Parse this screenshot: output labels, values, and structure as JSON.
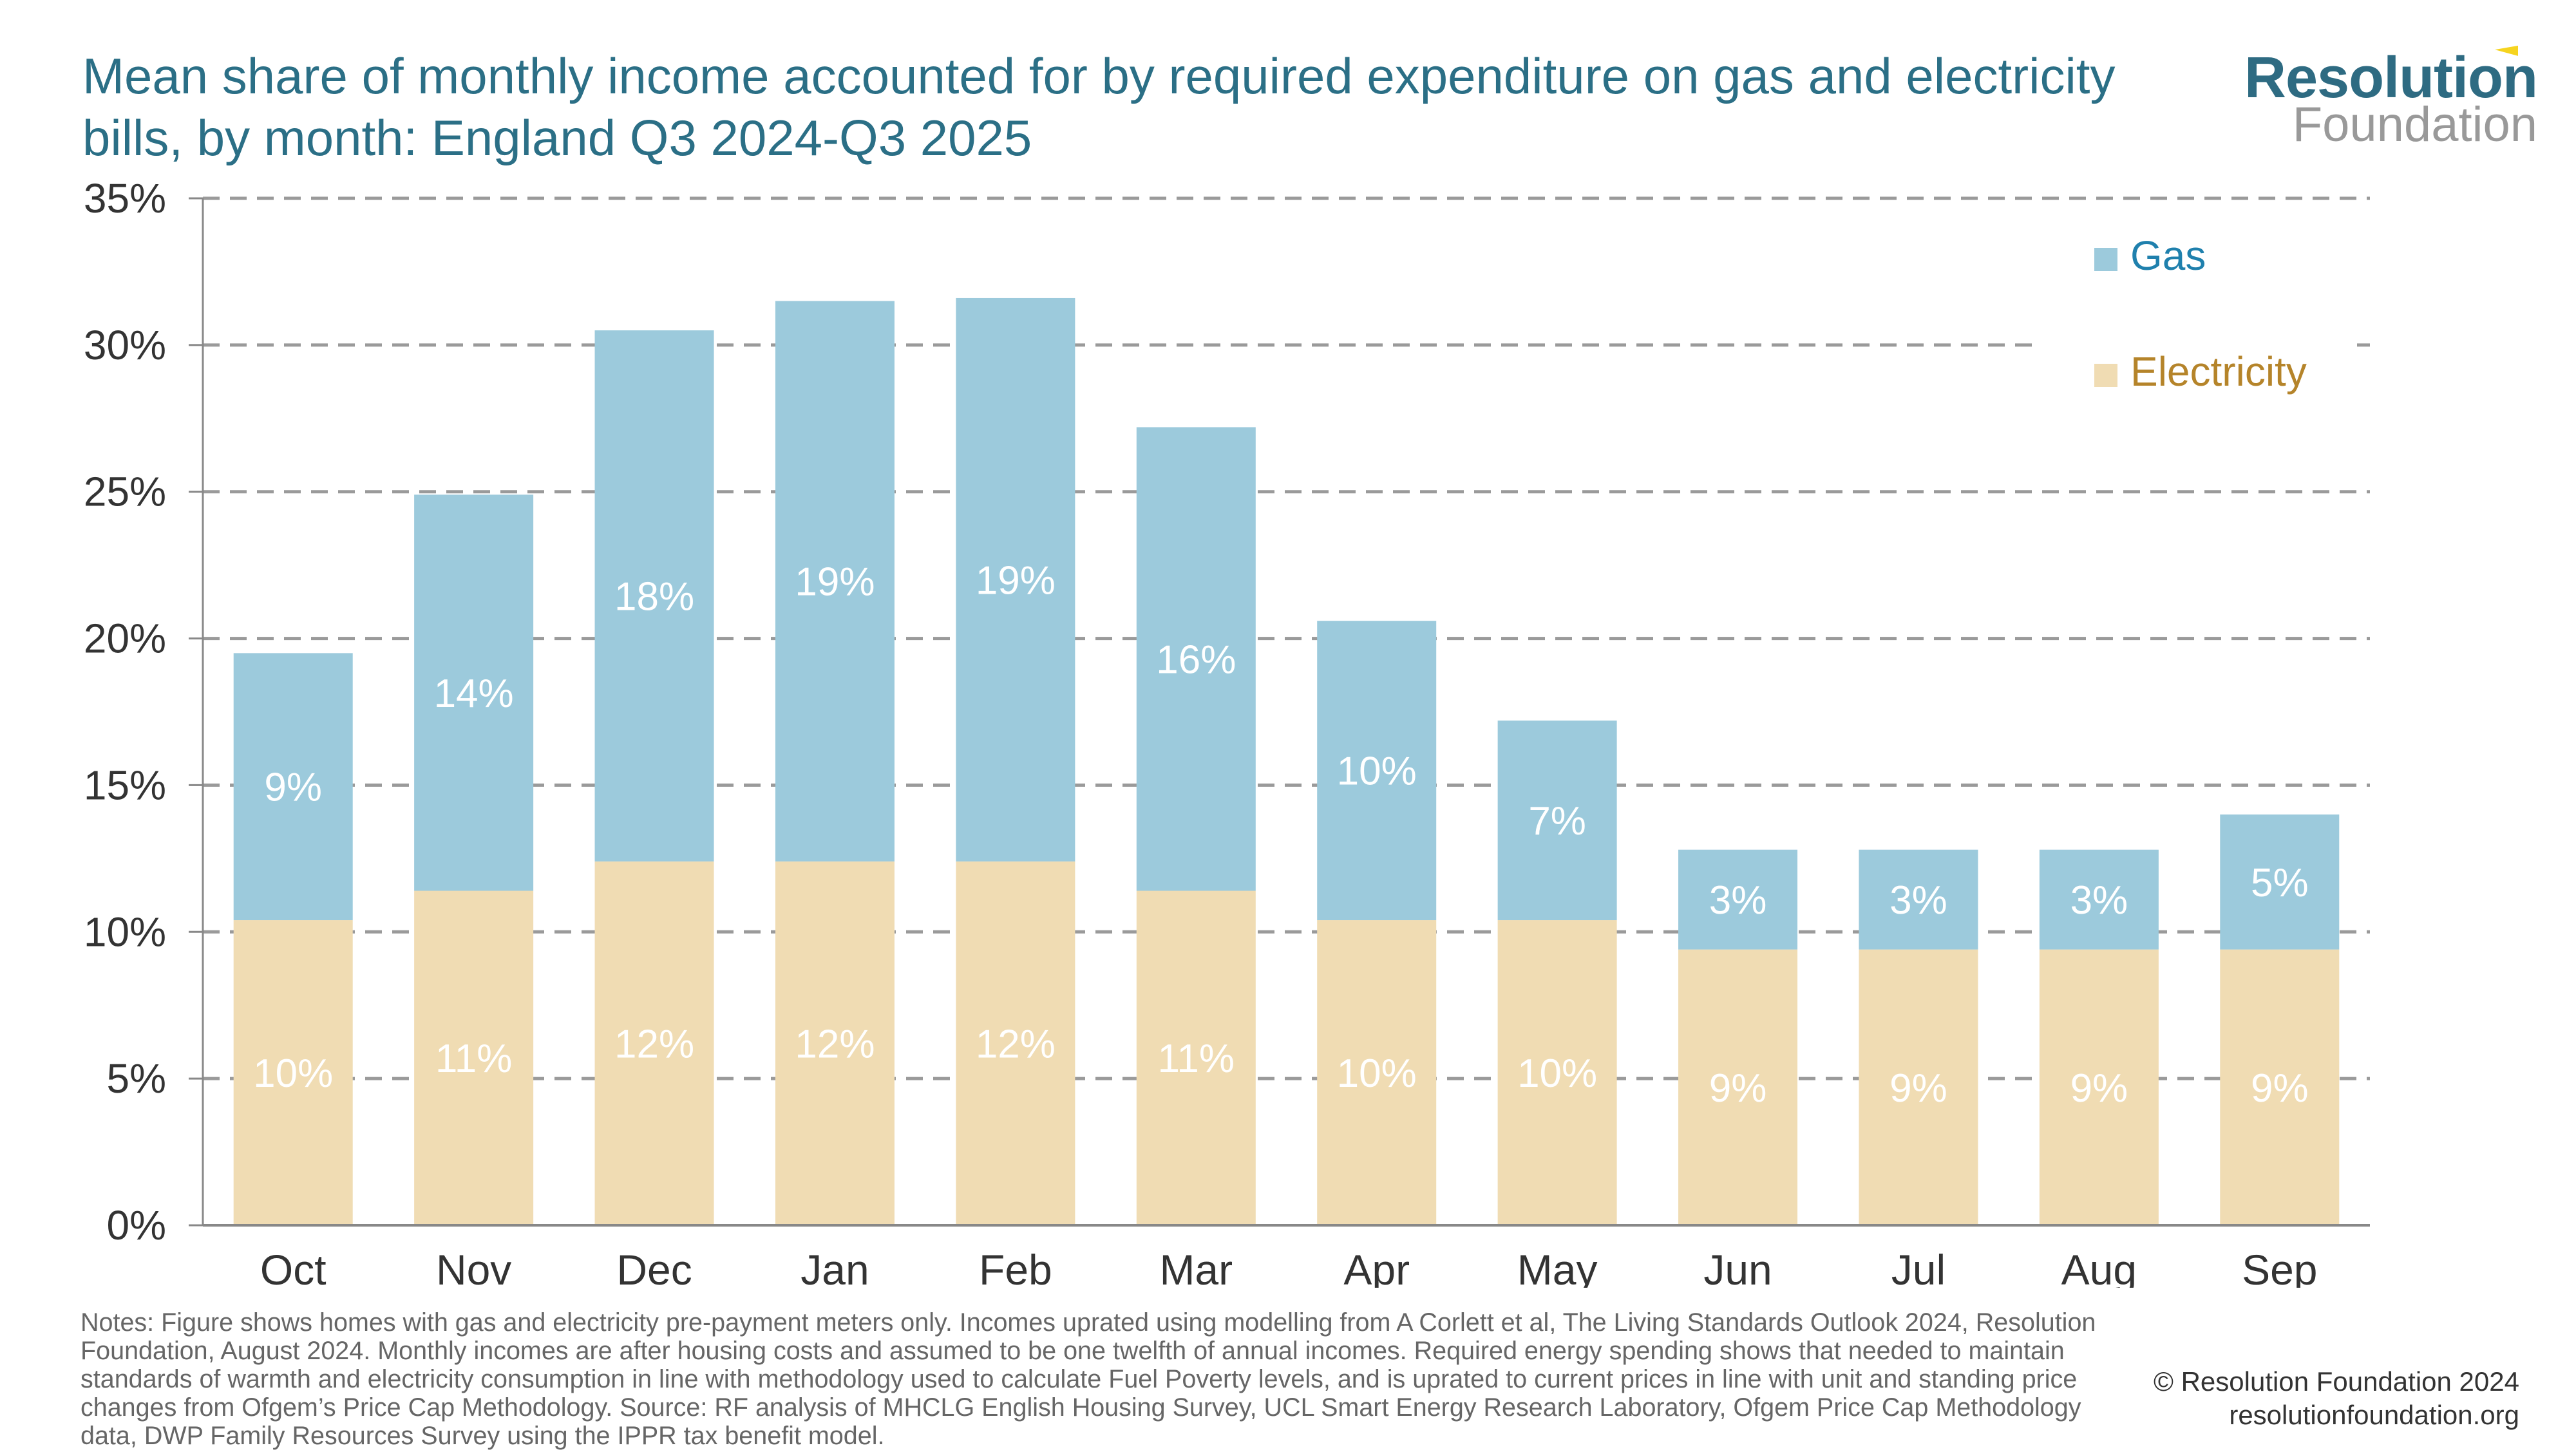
{
  "title": "Mean share of monthly income accounted for by required expenditure on gas and electricity bills, by month: England Q3 2024-Q3 2025",
  "logo": {
    "line1": "Resolution",
    "line2": "Foundation"
  },
  "notes": "Notes: Figure shows homes with gas and electricity pre-payment meters only. Incomes uprated using modelling from A Corlett et al, The Living Standards Outlook 2024, Resolution Foundation, August 2024. Monthly incomes are after housing costs and assumed to be one twelfth of annual incomes. Required energy spending shows that needed to maintain standards of warmth and electricity consumption in line with methodology used to calculate Fuel Poverty levels, and is uprated to current prices in line with unit and standing price changes from Ofgem’s Price Cap Methodology. Source: RF analysis of MHCLG English Housing Survey, UCL Smart Energy Research Laboratory, Ofgem Price Cap Methodology data, DWP Family Resources Survey using the IPPR tax benefit model.",
  "copyright": "© Resolution Foundation 2024",
  "website": "resolutionfoundation.org",
  "chart_data": {
    "type": "bar",
    "stacked": true,
    "categories": [
      "Oct",
      "Nov",
      "Dec",
      "Jan",
      "Feb",
      "Mar",
      "Apr",
      "May",
      "Jun",
      "Jul",
      "Aug",
      "Sep"
    ],
    "series": [
      {
        "name": "Electricity",
        "color": "#f0dcb3",
        "text_color": "#b5842a",
        "values": [
          10.4,
          11.4,
          12.4,
          12.4,
          12.4,
          11.4,
          10.4,
          10.4,
          9.4,
          9.4,
          9.4,
          9.4
        ],
        "labels": [
          "10%",
          "11%",
          "12%",
          "12%",
          "12%",
          "11%",
          "10%",
          "10%",
          "9%",
          "9%",
          "9%",
          "9%"
        ]
      },
      {
        "name": "Gas",
        "color": "#9ccadc",
        "text_color": "#1f80ad",
        "values": [
          9.1,
          13.5,
          18.1,
          19.1,
          19.2,
          15.8,
          10.2,
          6.8,
          3.4,
          3.4,
          3.4,
          4.6
        ],
        "labels": [
          "9%",
          "14%",
          "18%",
          "19%",
          "19%",
          "16%",
          "10%",
          "7%",
          "3%",
          "3%",
          "3%",
          "5%"
        ]
      }
    ],
    "ylim": [
      0,
      35
    ],
    "yticks": [
      0,
      5,
      10,
      15,
      20,
      25,
      30,
      35
    ],
    "ytick_labels": [
      "0%",
      "5%",
      "10%",
      "15%",
      "20%",
      "25%",
      "30%",
      "35%"
    ],
    "grid": true,
    "legend_position": "top-right"
  }
}
